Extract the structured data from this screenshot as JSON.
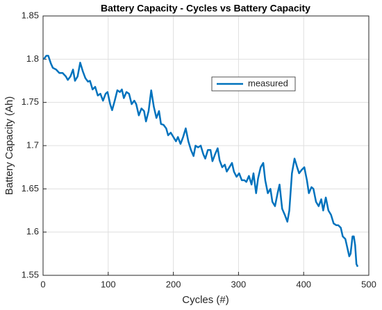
{
  "chart_data": {
    "type": "line",
    "title": "Battery Capacity - Cycles vs Battery Capacity",
    "xlabel": "Cycles (#)",
    "ylabel": "Battery Capacity (Ah)",
    "x": [
      1,
      5,
      8,
      12,
      15,
      20,
      25,
      30,
      35,
      38,
      42,
      46,
      49,
      53,
      57,
      61,
      65,
      69,
      72,
      76,
      80,
      84,
      88,
      92,
      96,
      99,
      103,
      106,
      110,
      114,
      118,
      121,
      124,
      128,
      132,
      136,
      140,
      143,
      147,
      151,
      155,
      158,
      162,
      166,
      170,
      174,
      178,
      181,
      185,
      189,
      192,
      196,
      200,
      204,
      207,
      211,
      215,
      219,
      223,
      227,
      231,
      234,
      238,
      242,
      246,
      249,
      253,
      257,
      260,
      264,
      268,
      271,
      275,
      279,
      282,
      286,
      290,
      293,
      297,
      301,
      305,
      309,
      312,
      316,
      320,
      323,
      327,
      330,
      334,
      338,
      341,
      345,
      349,
      352,
      356,
      360,
      363,
      367,
      371,
      375,
      378,
      382,
      386,
      390,
      393,
      397,
      401,
      405,
      408,
      412,
      415,
      419,
      423,
      427,
      430,
      434,
      438,
      442,
      446,
      450,
      453,
      457,
      460,
      464,
      467,
      470,
      472,
      475,
      477,
      479,
      481,
      483
    ],
    "series": [
      {
        "name": "measured",
        "color": "#0072bd",
        "values": [
          1.8,
          1.804,
          1.804,
          1.795,
          1.79,
          1.788,
          1.784,
          1.784,
          1.78,
          1.776,
          1.78,
          1.788,
          1.775,
          1.78,
          1.796,
          1.786,
          1.778,
          1.774,
          1.775,
          1.765,
          1.768,
          1.758,
          1.76,
          1.752,
          1.76,
          1.762,
          1.748,
          1.741,
          1.752,
          1.764,
          1.762,
          1.765,
          1.755,
          1.762,
          1.76,
          1.748,
          1.752,
          1.748,
          1.735,
          1.743,
          1.74,
          1.728,
          1.74,
          1.764,
          1.745,
          1.732,
          1.74,
          1.725,
          1.724,
          1.72,
          1.712,
          1.715,
          1.71,
          1.705,
          1.71,
          1.702,
          1.71,
          1.72,
          1.705,
          1.695,
          1.688,
          1.7,
          1.698,
          1.7,
          1.69,
          1.685,
          1.695,
          1.695,
          1.682,
          1.69,
          1.697,
          1.683,
          1.675,
          1.678,
          1.67,
          1.675,
          1.68,
          1.67,
          1.664,
          1.668,
          1.66,
          1.66,
          1.658,
          1.665,
          1.655,
          1.668,
          1.645,
          1.662,
          1.675,
          1.68,
          1.66,
          1.645,
          1.65,
          1.635,
          1.63,
          1.645,
          1.655,
          1.627,
          1.62,
          1.612,
          1.625,
          1.668,
          1.685,
          1.675,
          1.668,
          1.672,
          1.675,
          1.66,
          1.645,
          1.652,
          1.65,
          1.635,
          1.63,
          1.638,
          1.625,
          1.64,
          1.625,
          1.62,
          1.61,
          1.608,
          1.608,
          1.605,
          1.595,
          1.592,
          1.582,
          1.572,
          1.575,
          1.595,
          1.595,
          1.585,
          1.563,
          1.56
        ]
      }
    ],
    "xlim": [
      0,
      500
    ],
    "xticks": [
      0,
      100,
      200,
      300,
      400,
      500
    ],
    "ylim": [
      1.55,
      1.85
    ],
    "yticks": [
      1.55,
      1.6,
      1.65,
      1.7,
      1.75,
      1.8,
      1.85
    ],
    "grid": true,
    "legend": "northeast"
  }
}
